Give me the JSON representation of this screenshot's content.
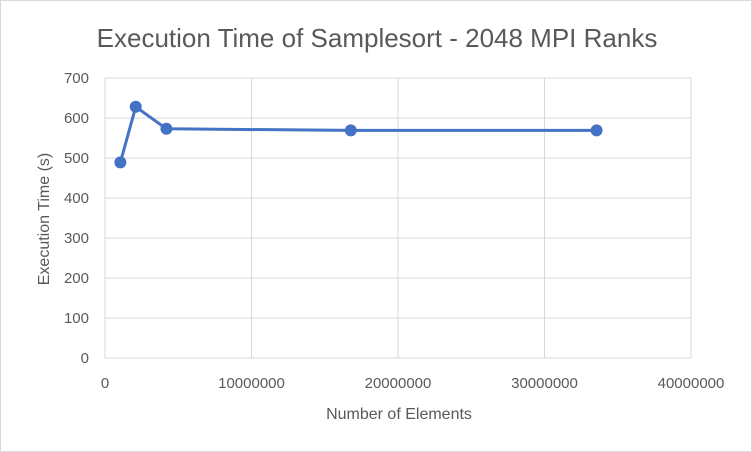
{
  "chart_data": {
    "type": "scatter",
    "title": "Execution Time of Samplesort - 2048 MPI Ranks",
    "xlabel": "Number of Elements",
    "ylabel": "Execution Time (s)",
    "xlim": [
      0,
      40000000
    ],
    "ylim": [
      0,
      700
    ],
    "x_ticks": [
      0,
      10000000,
      20000000,
      30000000,
      40000000
    ],
    "x_tick_labels": [
      "0",
      "10000000",
      "20000000",
      "30000000",
      "40000000"
    ],
    "y_ticks": [
      0,
      100,
      200,
      300,
      400,
      500,
      600,
      700
    ],
    "y_tick_labels": [
      "0",
      "100",
      "200",
      "300",
      "400",
      "500",
      "600",
      "700"
    ],
    "grid": true,
    "legend": "none",
    "series": [
      {
        "name": "Execution Time",
        "color": "#4472c4",
        "points": [
          {
            "x": 1048576,
            "y": 489
          },
          {
            "x": 2097152,
            "y": 628
          },
          {
            "x": 4194304,
            "y": 573
          },
          {
            "x": 16777216,
            "y": 569
          },
          {
            "x": 33554432,
            "y": 569
          }
        ]
      }
    ]
  }
}
